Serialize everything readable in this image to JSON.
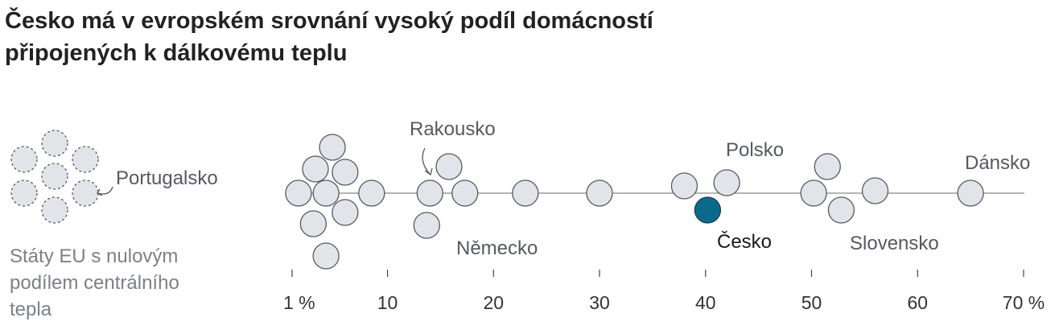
{
  "title": {
    "line1": "Česko má v evropském srovnání vysoký podíl domácností",
    "line2": "připojených k dálkovému teplu"
  },
  "zero_group": {
    "note_lines": [
      "Státy EU s nulovým",
      "podílem centrálního",
      "tepla"
    ],
    "count": 7,
    "label": "Portugalsko"
  },
  "colors": {
    "dot_fill": "#e3e4ea",
    "dot_stroke": "#555a60",
    "highlight": "#0b6a8c",
    "axis": "#888888"
  },
  "chart_data": {
    "type": "scatter",
    "title": "Česko má v evropském srovnání vysoký podíl domácností připojených k dálkovému teplu",
    "xlabel": "",
    "ylabel": "",
    "x_unit": "%",
    "xlim": [
      1,
      70
    ],
    "x_ticks": [
      1,
      10,
      20,
      30,
      40,
      50,
      60,
      70
    ],
    "x_tick_labels": [
      "1 %",
      "10",
      "20",
      "30",
      "40",
      "50",
      "60",
      "70 %"
    ],
    "grid": false,
    "points": [
      {
        "x": 1.6,
        "label": ""
      },
      {
        "x": 3.2,
        "label": ""
      },
      {
        "x": 4.8,
        "label": ""
      },
      {
        "x": 3.0,
        "label": ""
      },
      {
        "x": 4.2,
        "label": ""
      },
      {
        "x": 6.0,
        "label": ""
      },
      {
        "x": 6.0,
        "label": ""
      },
      {
        "x": 4.2,
        "label": ""
      },
      {
        "x": 8.5,
        "label": ""
      },
      {
        "x": 14.0,
        "label": "Rakousko"
      },
      {
        "x": 15.8,
        "label": ""
      },
      {
        "x": 17.3,
        "label": ""
      },
      {
        "x": 13.7,
        "label": "Německo"
      },
      {
        "x": 23.0,
        "label": ""
      },
      {
        "x": 30.0,
        "label": ""
      },
      {
        "x": 38.0,
        "label": ""
      },
      {
        "x": 42.0,
        "label": "Polsko"
      },
      {
        "x": 40.2,
        "label": "Česko",
        "highlight": true
      },
      {
        "x": 51.5,
        "label": ""
      },
      {
        "x": 50.2,
        "label": ""
      },
      {
        "x": 52.8,
        "label": "Slovensko"
      },
      {
        "x": 56.0,
        "label": ""
      },
      {
        "x": 65.0,
        "label": "Dánsko"
      }
    ]
  }
}
